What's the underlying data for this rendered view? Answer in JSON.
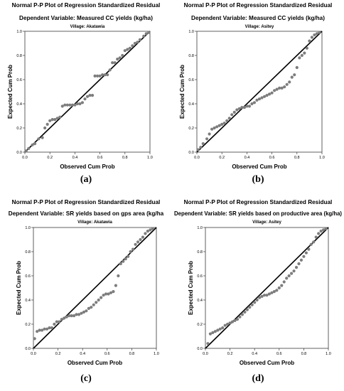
{
  "chart_data": [
    {
      "type": "scatter",
      "title": "Normal P-P Plot of Regression Standardized Residual",
      "subtitle": "Dependent Variable: Measured CC yields (kg/ha)",
      "village": "Village: Akatawia",
      "xlabel": "Observed Cum Prob",
      "ylabel": "Expected Cum Prob",
      "xlim": [
        0,
        1
      ],
      "ylim": [
        0,
        1
      ],
      "ticks": [
        "0.0",
        "0.2",
        "0.4",
        "0.6",
        "0.8",
        "1.0"
      ],
      "caption": "(a)",
      "x": [
        0.01,
        0.03,
        0.06,
        0.08,
        0.11,
        0.14,
        0.16,
        0.18,
        0.2,
        0.22,
        0.24,
        0.26,
        0.28,
        0.3,
        0.32,
        0.34,
        0.36,
        0.38,
        0.4,
        0.42,
        0.44,
        0.46,
        0.48,
        0.5,
        0.52,
        0.54,
        0.56,
        0.58,
        0.6,
        0.62,
        0.64,
        0.66,
        0.68,
        0.7,
        0.72,
        0.74,
        0.76,
        0.78,
        0.8,
        0.82,
        0.84,
        0.86,
        0.88,
        0.9,
        0.92,
        0.95,
        0.97,
        0.99
      ],
      "y": [
        0.01,
        0.03,
        0.06,
        0.07,
        0.11,
        0.12,
        0.2,
        0.23,
        0.26,
        0.27,
        0.27,
        0.28,
        0.29,
        0.38,
        0.39,
        0.39,
        0.39,
        0.39,
        0.39,
        0.4,
        0.4,
        0.41,
        0.44,
        0.46,
        0.47,
        0.47,
        0.63,
        0.63,
        0.63,
        0.64,
        0.64,
        0.64,
        0.68,
        0.74,
        0.74,
        0.77,
        0.78,
        0.8,
        0.84,
        0.85,
        0.86,
        0.88,
        0.9,
        0.91,
        0.93,
        0.96,
        0.98,
        0.99
      ]
    },
    {
      "type": "scatter",
      "title": "Normal P-P Plot of Regression Standardized Residual",
      "subtitle": "Dependent Variable: Measured CC yields (kg/ha)",
      "village": "Village: Asitey",
      "xlabel": "Observed Cum Prob",
      "ylabel": "Expected Cum Prob",
      "xlim": [
        0,
        1
      ],
      "ylim": [
        0,
        1
      ],
      "ticks": [
        "0.0",
        "0.2",
        "0.4",
        "0.6",
        "0.8",
        "1.0"
      ],
      "caption": "(b)",
      "x": [
        0.01,
        0.03,
        0.05,
        0.08,
        0.1,
        0.12,
        0.14,
        0.16,
        0.18,
        0.2,
        0.22,
        0.24,
        0.26,
        0.28,
        0.3,
        0.32,
        0.34,
        0.36,
        0.38,
        0.4,
        0.42,
        0.44,
        0.46,
        0.48,
        0.5,
        0.52,
        0.54,
        0.56,
        0.58,
        0.6,
        0.62,
        0.64,
        0.66,
        0.68,
        0.7,
        0.72,
        0.74,
        0.76,
        0.78,
        0.8,
        0.82,
        0.84,
        0.86,
        0.88,
        0.9,
        0.92,
        0.94,
        0.96,
        0.98
      ],
      "y": [
        0.02,
        0.04,
        0.07,
        0.11,
        0.15,
        0.19,
        0.2,
        0.21,
        0.22,
        0.23,
        0.24,
        0.26,
        0.28,
        0.31,
        0.33,
        0.35,
        0.36,
        0.37,
        0.37,
        0.38,
        0.38,
        0.4,
        0.41,
        0.43,
        0.44,
        0.45,
        0.46,
        0.47,
        0.48,
        0.49,
        0.51,
        0.52,
        0.53,
        0.53,
        0.54,
        0.56,
        0.58,
        0.62,
        0.64,
        0.7,
        0.78,
        0.8,
        0.82,
        0.86,
        0.92,
        0.95,
        0.97,
        0.98,
        0.99
      ]
    },
    {
      "type": "scatter",
      "title": "Normal P-P Plot of Regression Standardized Residual",
      "subtitle": "Dependent Variable: SR yields based on gps area (kg/ha",
      "village": "Village: Akatawia",
      "xlabel": "Observed Cum Prob",
      "ylabel": "Expected Cum Prob",
      "xlim": [
        0,
        1
      ],
      "ylim": [
        0,
        1
      ],
      "ticks": [
        "0.0",
        "0.2",
        "0.4",
        "0.6",
        "0.8",
        "1.0"
      ],
      "caption": "(c)",
      "x": [
        0.01,
        0.03,
        0.05,
        0.07,
        0.09,
        0.11,
        0.13,
        0.15,
        0.17,
        0.19,
        0.21,
        0.23,
        0.25,
        0.27,
        0.29,
        0.31,
        0.33,
        0.35,
        0.37,
        0.39,
        0.41,
        0.43,
        0.45,
        0.47,
        0.49,
        0.51,
        0.53,
        0.55,
        0.57,
        0.59,
        0.61,
        0.63,
        0.65,
        0.67,
        0.69,
        0.71,
        0.73,
        0.75,
        0.77,
        0.79,
        0.81,
        0.83,
        0.85,
        0.87,
        0.89,
        0.91,
        0.93,
        0.95,
        0.97
      ],
      "y": [
        0.08,
        0.14,
        0.15,
        0.15,
        0.16,
        0.16,
        0.17,
        0.17,
        0.2,
        0.22,
        0.22,
        0.24,
        0.25,
        0.26,
        0.27,
        0.27,
        0.27,
        0.28,
        0.28,
        0.29,
        0.3,
        0.31,
        0.33,
        0.34,
        0.36,
        0.38,
        0.4,
        0.42,
        0.44,
        0.45,
        0.45,
        0.46,
        0.47,
        0.52,
        0.6,
        0.7,
        0.72,
        0.74,
        0.76,
        0.8,
        0.82,
        0.86,
        0.88,
        0.9,
        0.92,
        0.95,
        0.97,
        0.98,
        0.99
      ]
    },
    {
      "type": "scatter",
      "title": "Normal P-P Plot of Regression Standardized Residual",
      "subtitle": "Dependent Variable: SR yields based on productive area (kg/ha)",
      "village": "Village: Asitey",
      "xlabel": "Observed Cum Prob",
      "ylabel": "Expected Cum Prob",
      "xlim": [
        0,
        1
      ],
      "ylim": [
        0,
        1
      ],
      "ticks": [
        "0.0",
        "0.2",
        "0.4",
        "0.6",
        "0.8",
        "1.0"
      ],
      "caption": "(d)",
      "x": [
        0.02,
        0.04,
        0.06,
        0.08,
        0.1,
        0.12,
        0.14,
        0.16,
        0.18,
        0.2,
        0.22,
        0.24,
        0.26,
        0.28,
        0.3,
        0.32,
        0.34,
        0.36,
        0.38,
        0.4,
        0.42,
        0.44,
        0.46,
        0.48,
        0.5,
        0.52,
        0.54,
        0.56,
        0.58,
        0.6,
        0.62,
        0.64,
        0.66,
        0.68,
        0.7,
        0.72,
        0.74,
        0.76,
        0.78,
        0.8,
        0.82,
        0.84,
        0.86,
        0.88,
        0.9,
        0.92,
        0.94,
        0.96,
        0.98
      ],
      "y": [
        0.04,
        0.12,
        0.13,
        0.14,
        0.15,
        0.16,
        0.17,
        0.19,
        0.2,
        0.21,
        0.22,
        0.23,
        0.24,
        0.26,
        0.28,
        0.3,
        0.32,
        0.34,
        0.36,
        0.38,
        0.4,
        0.42,
        0.43,
        0.44,
        0.44,
        0.45,
        0.46,
        0.47,
        0.48,
        0.5,
        0.52,
        0.55,
        0.58,
        0.6,
        0.62,
        0.64,
        0.67,
        0.7,
        0.73,
        0.76,
        0.79,
        0.82,
        0.86,
        0.88,
        0.92,
        0.95,
        0.97,
        0.98,
        0.99
      ]
    }
  ]
}
